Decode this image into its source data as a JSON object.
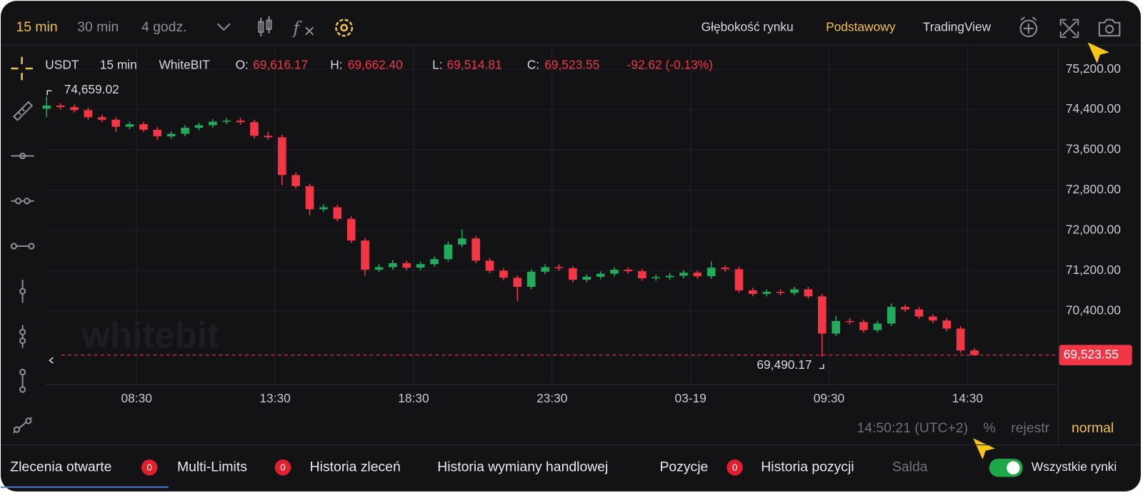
{
  "toolbar": {
    "intervals": [
      "15 min",
      "30 min",
      "4 godz."
    ],
    "views": [
      "Głębokość rynku",
      "Podstawowy",
      "TradingView"
    ]
  },
  "legend": {
    "symbol": "USDT",
    "interval": "15 min",
    "exchange": "WhiteBIT",
    "open_key": "O:",
    "open": "69,616.17",
    "high_key": "H:",
    "high": "69,662.40",
    "low_key": "L:",
    "low": "69,514.81",
    "close_key": "C:",
    "close": "69,523.55",
    "change": "-92.62 (-0.13%)"
  },
  "watermark": "whitebit",
  "chart_data": {
    "type": "candlestick",
    "up_color": "#22ab5c",
    "down_color": "#f23645",
    "grid": true,
    "xlim": [
      -3,
      2192
    ],
    "ylim": [
      68940,
      75680
    ],
    "xticks": [
      {
        "value": 195,
        "label": "08:30"
      },
      {
        "value": 495,
        "label": "13:30"
      },
      {
        "value": 795,
        "label": "18:30"
      },
      {
        "value": 1095,
        "label": "23:30"
      },
      {
        "value": 1395,
        "label": "03-19"
      },
      {
        "value": 1695,
        "label": "09:30"
      },
      {
        "value": 1995,
        "label": "14:30"
      }
    ],
    "yticks": [
      {
        "value": 75200,
        "label": "75,200.00"
      },
      {
        "value": 74400,
        "label": "74,400.00"
      },
      {
        "value": 73600,
        "label": "73,600.00"
      },
      {
        "value": 72800,
        "label": "72,800.00"
      },
      {
        "value": 72000,
        "label": "72,000.00"
      },
      {
        "value": 71200,
        "label": "71,200.00"
      },
      {
        "value": 70400,
        "label": "70,400.00"
      }
    ],
    "x": [
      0,
      30,
      60,
      90,
      120,
      150,
      180,
      210,
      240,
      270,
      300,
      330,
      360,
      390,
      420,
      450,
      480,
      510,
      540,
      570,
      600,
      630,
      660,
      690,
      720,
      750,
      780,
      810,
      840,
      870,
      900,
      930,
      960,
      990,
      1020,
      1050,
      1080,
      1110,
      1140,
      1170,
      1200,
      1230,
      1260,
      1290,
      1320,
      1350,
      1380,
      1410,
      1440,
      1470,
      1500,
      1530,
      1560,
      1590,
      1620,
      1650,
      1680,
      1710,
      1740,
      1770,
      1800,
      1830,
      1860,
      1890,
      1920,
      1950,
      1980,
      2010
    ],
    "open": [
      74420,
      74480,
      74450,
      74390,
      74250,
      74200,
      74060,
      74110,
      74000,
      73870,
      73920,
      74040,
      74090,
      74160,
      74180,
      74150,
      73880,
      73850,
      73100,
      72880,
      72420,
      72460,
      72230,
      71800,
      71220,
      71270,
      71350,
      71260,
      71330,
      71430,
      71720,
      71840,
      71400,
      71200,
      71060,
      70880,
      71180,
      71270,
      71250,
      71020,
      71080,
      71140,
      71220,
      71190,
      71050,
      71070,
      71100,
      71160,
      71090,
      71260,
      71230,
      70810,
      70740,
      70780,
      70760,
      70830,
      70690,
      69950,
      70200,
      70180,
      70020,
      70150,
      70480,
      70430,
      70290,
      70210,
      70050,
      69616.17
    ],
    "high": [
      74659.02,
      74530,
      74500,
      74440,
      74300,
      74250,
      74160,
      74160,
      74050,
      73970,
      74090,
      74140,
      74210,
      74230,
      74240,
      74200,
      73960,
      73900,
      73150,
      72930,
      72520,
      72510,
      72280,
      71850,
      71330,
      71410,
      71400,
      71380,
      71480,
      71780,
      72020,
      71890,
      71450,
      71250,
      71110,
      71230,
      71330,
      71330,
      71290,
      71130,
      71190,
      71270,
      71270,
      71240,
      71120,
      71150,
      71210,
      71200,
      71380,
      71300,
      71280,
      70860,
      70830,
      70830,
      70880,
      70880,
      70740,
      70300,
      70260,
      70230,
      70200,
      70550,
      70530,
      70480,
      70340,
      70260,
      70100,
      69662.4
    ],
    "low": [
      74250,
      74400,
      74340,
      74200,
      74150,
      73960,
      74010,
      73950,
      73800,
      73820,
      73870,
      73990,
      74040,
      74110,
      74100,
      73830,
      73800,
      72900,
      72830,
      72300,
      72370,
      72180,
      71750,
      71100,
      71170,
      71220,
      71210,
      71210,
      71280,
      71380,
      71670,
      71350,
      71150,
      71010,
      70600,
      70830,
      71130,
      71200,
      70970,
      70970,
      71030,
      71090,
      71140,
      71000,
      71000,
      71020,
      71050,
      71040,
      71040,
      71180,
      70760,
      70690,
      70690,
      70710,
      70710,
      70640,
      69490.17,
      69900,
      70130,
      69970,
      69970,
      70100,
      70380,
      70240,
      70160,
      70000,
      69570,
      69514.81
    ],
    "close": [
      74480,
      74450,
      74390,
      74250,
      74200,
      74060,
      74110,
      74000,
      73870,
      73920,
      74040,
      74090,
      74160,
      74180,
      74150,
      73880,
      73850,
      73100,
      72880,
      72420,
      72460,
      72230,
      71800,
      71220,
      71270,
      71350,
      71260,
      71330,
      71430,
      71720,
      71840,
      71400,
      71200,
      71060,
      70880,
      71180,
      71270,
      71250,
      71020,
      71080,
      71140,
      71220,
      71190,
      71050,
      71070,
      71100,
      71160,
      71090,
      71260,
      71230,
      70810,
      70740,
      70780,
      70760,
      70830,
      70690,
      69950,
      70200,
      70180,
      70020,
      70150,
      70480,
      70430,
      70290,
      70210,
      70050,
      69616.17,
      69523.55
    ],
    "high_marker": {
      "value": 74659.02,
      "label": "74,659.02"
    },
    "low_marker": {
      "value": 69490.17,
      "label": "69,490.17"
    },
    "last_price": {
      "value": 69523.55,
      "label": "69,523.55"
    }
  },
  "footer": {
    "time": "14:50:21 (UTC+2)",
    "percent": "%",
    "log": "rejestr",
    "mode": "normal"
  },
  "tabs": [
    {
      "label": "Zlecenia otwarte",
      "badge": 0
    },
    {
      "label": "Multi-Limits",
      "badge": 0
    },
    {
      "label": "Historia zleceń"
    },
    {
      "label": "Historia wymiany handlowej"
    },
    {
      "label": "Pozycje",
      "badge": 0
    },
    {
      "label": "Historia pozycji"
    },
    {
      "label": "Salda"
    }
  ],
  "toggle_label": "Wszystkie rynki"
}
